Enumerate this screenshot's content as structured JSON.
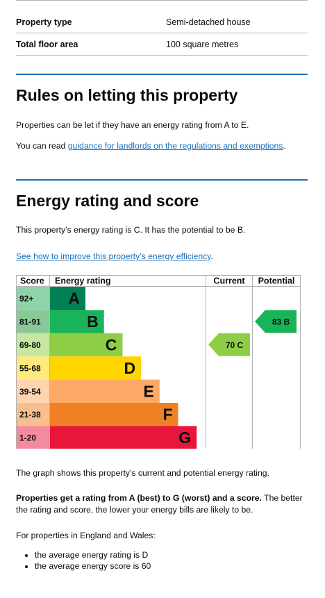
{
  "summary": {
    "rows": [
      {
        "label": "Property type",
        "value": "Semi-detached house"
      },
      {
        "label": "Total floor area",
        "value": "100 square metres"
      }
    ]
  },
  "rules": {
    "heading": "Rules on letting this property",
    "para1": "Properties can be let if they have an energy rating from A to E.",
    "para2_prefix": "You can read ",
    "para2_link": "guidance for landlords on the regulations and exemptions",
    "para2_suffix": "."
  },
  "energy": {
    "heading": "Energy rating and score",
    "rating_text": "This property’s energy rating is C. It has the potential to be B.",
    "improve_link": "See how to improve this property’s energy efficiency",
    "improve_suffix": ".",
    "graph_text": "The graph shows this property’s current and potential energy rating.",
    "bold_text": "Properties get a rating from A (best) to G (worst) and a score.",
    "bold_followup": " The better the rating and score, the lower your energy bills are likely to be.",
    "region_text": "For properties in England and Wales:",
    "bullets": [
      "the average energy rating is D",
      "the average energy score is 60"
    ]
  },
  "chart_data": {
    "type": "bar",
    "headers": {
      "score": "Score",
      "rating": "Energy rating",
      "current": "Current",
      "potential": "Potential"
    },
    "bands": [
      {
        "score": "92+",
        "letter": "A",
        "color": "#008054",
        "score_bg": "#8fd3a8"
      },
      {
        "score": "81-91",
        "letter": "B",
        "color": "#19b459",
        "score_bg": "#88c997"
      },
      {
        "score": "69-80",
        "letter": "C",
        "color": "#8dce46",
        "score_bg": "#c6e6a2"
      },
      {
        "score": "55-68",
        "letter": "D",
        "color": "#ffd500",
        "score_bg": "#ffea80"
      },
      {
        "score": "39-54",
        "letter": "E",
        "color": "#fcaa65",
        "score_bg": "#fed4b1"
      },
      {
        "score": "21-38",
        "letter": "F",
        "color": "#ef8023",
        "score_bg": "#f7bf90"
      },
      {
        "score": "1-20",
        "letter": "G",
        "color": "#e9153b",
        "score_bg": "#f48a9d"
      }
    ],
    "current": {
      "score": 70,
      "band": "C",
      "label": "70 C",
      "color": "#8dce46"
    },
    "potential": {
      "score": 83,
      "band": "B",
      "label": "83 B",
      "color": "#19b459"
    }
  }
}
